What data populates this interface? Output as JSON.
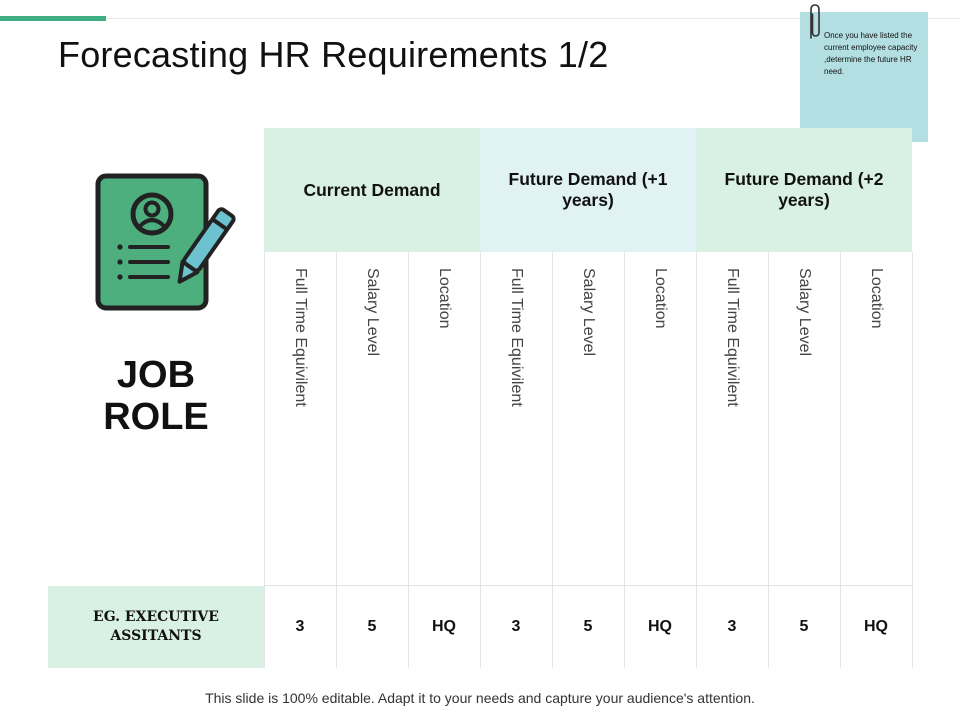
{
  "slide": {
    "title": "Forecasting HR Requirements 1/2",
    "footer": "This slide is 100% editable. Adapt it to your needs and capture your audience's attention."
  },
  "note": {
    "text": "Once you have listed the current employee capacity ,determine the future HR need."
  },
  "icons": {
    "document": "job-document-with-pencil-icon",
    "clip": "paperclip-icon"
  },
  "colors": {
    "accent": "#3fae82",
    "header_green": "#d9f0e4",
    "header_blue": "#e1f2f4",
    "note": "#b3dfe3",
    "icon_fill": "#4caf7d"
  },
  "table": {
    "left_label": "JOB ROLE",
    "groups": [
      {
        "label": "Current Demand"
      },
      {
        "label": "Future Demand (+1 years)"
      },
      {
        "label": "Future Demand (+2 years)"
      }
    ],
    "subcolumns": [
      "Full Time Equivilent",
      "Salary Level",
      "Location",
      "Full Time Equivilent",
      "Salary Level",
      "Location",
      "Full Time Equivilent",
      "Salary Level",
      "Location"
    ],
    "rows": [
      {
        "label": "EG. EXECUTIVE ASSITANTS",
        "values": [
          "3",
          "5",
          "HQ",
          "3",
          "5",
          "HQ",
          "3",
          "5",
          "HQ"
        ]
      }
    ]
  }
}
